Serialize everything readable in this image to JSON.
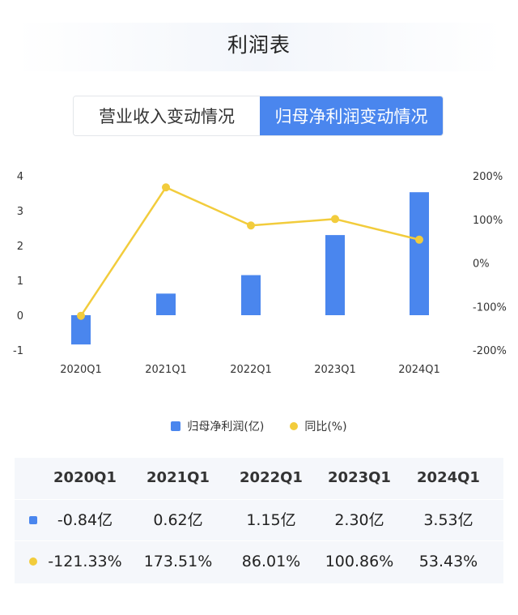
{
  "title": "利润表",
  "tabs": [
    {
      "label": "营业收入变动情况",
      "active": false
    },
    {
      "label": "归母净利润变动情况",
      "active": true
    }
  ],
  "colors": {
    "bar": "#4a86ee",
    "line": "#f2cc3c",
    "accent": "#4a86ee"
  },
  "chart_data": {
    "type": "bar",
    "categories": [
      "2020Q1",
      "2021Q1",
      "2022Q1",
      "2023Q1",
      "2024Q1"
    ],
    "series": [
      {
        "name": "归母净利润(亿)",
        "type": "bar",
        "axis": "left",
        "values": [
          -0.84,
          0.62,
          1.15,
          2.3,
          3.53
        ]
      },
      {
        "name": "同比(%)",
        "type": "line",
        "axis": "right",
        "values": [
          -121.33,
          173.51,
          86.01,
          100.86,
          53.43
        ]
      }
    ],
    "y_left": {
      "ticks": [
        "4",
        "3",
        "2",
        "1",
        "0",
        "-1"
      ],
      "range": [
        -1,
        4
      ]
    },
    "y_right": {
      "ticks": [
        "200%",
        "100%",
        "0%",
        "-100%",
        "-200%"
      ],
      "range": [
        -200,
        200
      ]
    },
    "legend": [
      "归母净利润(亿)",
      "同比(%)"
    ],
    "legend_position": "bottom",
    "grid": false
  },
  "table": {
    "header": [
      "2020Q1",
      "2021Q1",
      "2022Q1",
      "2023Q1",
      "2024Q1"
    ],
    "rows": [
      {
        "marker": "bar",
        "cells": [
          "-0.84亿",
          "0.62亿",
          "1.15亿",
          "2.30亿",
          "3.53亿"
        ]
      },
      {
        "marker": "line",
        "cells": [
          "-121.33%",
          "173.51%",
          "86.01%",
          "100.86%",
          "53.43%"
        ]
      }
    ]
  }
}
